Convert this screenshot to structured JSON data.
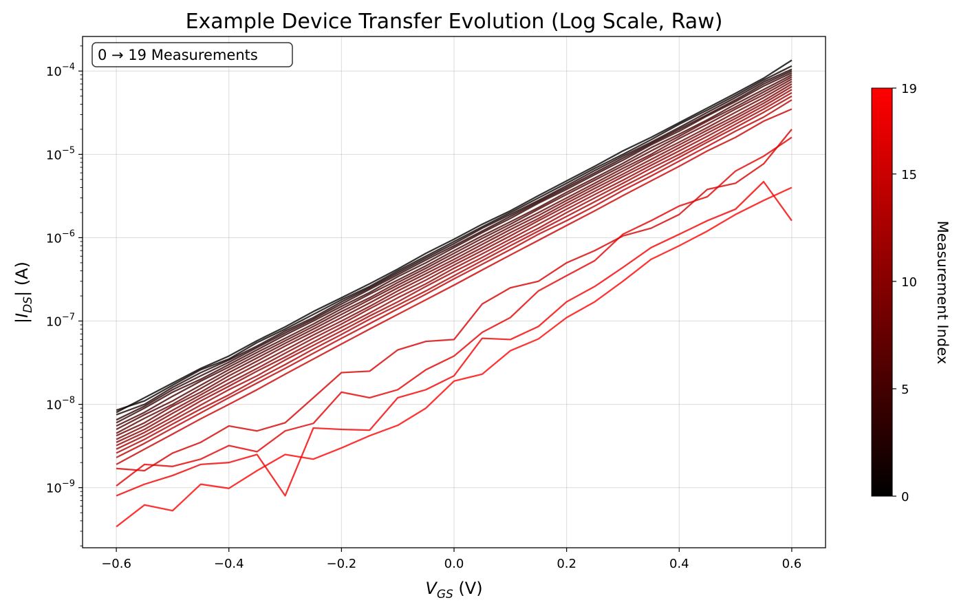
{
  "chart_data": {
    "type": "line",
    "title": "Example Device Transfer Evolution (Log Scale, Raw)",
    "xlabel": {
      "main": "V",
      "sub": "GS",
      "unit": " (V)"
    },
    "ylabel": {
      "main": "|I",
      "sub": "DS",
      "unit": "| (A)"
    },
    "xlim": [
      -0.66,
      0.66
    ],
    "ylim": [
      1.9e-10,
      0.00026
    ],
    "yscale": "log",
    "grid": true,
    "annotation": "0 → 19 Measurements",
    "x_ticks": [
      -0.6,
      -0.4,
      -0.2,
      0.0,
      0.2,
      0.4,
      0.6
    ],
    "x_tick_labels": [
      "−0.6",
      "−0.4",
      "−0.2",
      "0.0",
      "0.2",
      "0.4",
      "0.6"
    ],
    "y_ticks": [
      {
        "value": 1e-09,
        "base": "10",
        "exp": "−9"
      },
      {
        "value": 1e-08,
        "base": "10",
        "exp": "−8"
      },
      {
        "value": 1e-07,
        "base": "10",
        "exp": "−7"
      },
      {
        "value": 1e-06,
        "base": "10",
        "exp": "−6"
      },
      {
        "value": 1e-05,
        "base": "10",
        "exp": "−5"
      },
      {
        "value": 0.0001,
        "base": "10",
        "exp": "−4"
      }
    ],
    "colorbar": {
      "label": "Measurement Index",
      "range": [
        0,
        19
      ],
      "ticks": [
        0,
        5,
        10,
        15,
        19
      ],
      "tick_labels": [
        "0",
        "5",
        "10",
        "15",
        "19"
      ],
      "colors": [
        "#000000",
        "#ff0000"
      ]
    },
    "x": [
      -0.6,
      -0.55,
      -0.5,
      -0.45,
      -0.4,
      -0.35,
      -0.3,
      -0.25,
      -0.2,
      -0.15,
      -0.1,
      -0.05,
      0.0,
      0.05,
      0.1,
      0.15,
      0.2,
      0.25,
      0.3,
      0.35,
      0.4,
      0.45,
      0.5,
      0.55,
      0.6
    ],
    "series": [
      {
        "index": 0,
        "values": [
          8e-09,
          1.2e-08,
          1.8e-08,
          2.7e-08,
          3.8e-08,
          5.8e-08,
          8.5e-08,
          1.3e-07,
          1.9e-07,
          2.8e-07,
          4.2e-07,
          6.5e-07,
          9.6e-07,
          1.45e-06,
          2.1e-06,
          3.2e-06,
          4.8e-06,
          7.2e-06,
          1.1e-05,
          1.6e-05,
          2.4e-05,
          3.6e-05,
          5.4e-05,
          8.2e-05,
          0.000135
        ]
      },
      {
        "index": 1,
        "values": [
          8.5e-09,
          1.1e-08,
          1.7e-08,
          2.6e-08,
          3.5e-08,
          5.5e-08,
          8e-08,
          1.2e-07,
          1.8e-07,
          2.6e-07,
          4e-07,
          6e-07,
          9e-07,
          1.35e-06,
          2e-06,
          3e-06,
          4.5e-06,
          6.8e-06,
          1e-05,
          1.5e-05,
          2.3e-05,
          3.4e-05,
          5.1e-05,
          7.8e-05,
          0.000115
        ]
      },
      {
        "index": 2,
        "values": [
          7.5e-09,
          1e-08,
          1.6e-08,
          2.4e-08,
          3.4e-08,
          5e-08,
          7.6e-08,
          1.1e-07,
          1.7e-07,
          2.5e-07,
          3.8e-07,
          5.7e-07,
          8.5e-07,
          1.3e-06,
          1.9e-06,
          2.8e-06,
          4.2e-06,
          6.4e-06,
          9.5e-06,
          1.4e-05,
          2.1e-05,
          3.2e-05,
          4.8e-05,
          7.4e-05,
          0.000105
        ]
      },
      {
        "index": 3,
        "values": [
          6.5e-09,
          9.5e-09,
          1.5e-08,
          2.2e-08,
          3.2e-08,
          4.8e-08,
          7.2e-08,
          1.05e-07,
          1.6e-07,
          2.4e-07,
          3.6e-07,
          5.4e-07,
          8e-07,
          1.2e-06,
          1.8e-06,
          2.7e-06,
          4e-06,
          6e-06,
          9e-06,
          1.35e-05,
          2e-05,
          3e-05,
          4.5e-05,
          7e-05,
          0.0001
        ]
      },
      {
        "index": 4,
        "values": [
          6e-09,
          9e-09,
          1.4e-08,
          2e-08,
          3e-08,
          4.5e-08,
          6.8e-08,
          1e-07,
          1.5e-07,
          2.2e-07,
          3.4e-07,
          5e-07,
          7.6e-07,
          1.15e-06,
          1.7e-06,
          2.6e-06,
          3.8e-06,
          5.7e-06,
          8.5e-06,
          1.3e-05,
          1.9e-05,
          2.9e-05,
          4.3e-05,
          6.6e-05,
          9.5e-05
        ]
      },
      {
        "index": 5,
        "values": [
          5.5e-09,
          8e-09,
          1.25e-08,
          1.9e-08,
          2.8e-08,
          4.2e-08,
          6.2e-08,
          9.2e-08,
          1.4e-07,
          2.1e-07,
          3.1e-07,
          4.6e-07,
          7e-07,
          1.05e-06,
          1.55e-06,
          2.3e-06,
          3.5e-06,
          5.2e-06,
          7.8e-06,
          1.2e-05,
          1.75e-05,
          2.6e-05,
          4e-05,
          6e-05,
          9e-05
        ]
      },
      {
        "index": 6,
        "values": [
          5e-09,
          7.5e-09,
          1.1e-08,
          1.7e-08,
          2.6e-08,
          3.9e-08,
          5.8e-08,
          8.6e-08,
          1.3e-07,
          1.9e-07,
          2.9e-07,
          4.3e-07,
          6.5e-07,
          9.8e-07,
          1.45e-06,
          2.2e-06,
          3.3e-06,
          4.9e-06,
          7.3e-06,
          1.1e-05,
          1.65e-05,
          2.5e-05,
          3.7e-05,
          5.6e-05,
          8.5e-05
        ]
      },
      {
        "index": 7,
        "values": [
          4.5e-09,
          6.8e-09,
          1e-08,
          1.55e-08,
          2.4e-08,
          3.6e-08,
          5.4e-08,
          8e-08,
          1.2e-07,
          1.8e-07,
          2.7e-07,
          4e-07,
          6e-07,
          9e-07,
          1.35e-06,
          2e-06,
          3e-06,
          4.5e-06,
          6.8e-06,
          1e-05,
          1.55e-05,
          2.3e-05,
          3.5e-05,
          5.2e-05,
          8e-05
        ]
      },
      {
        "index": 8,
        "values": [
          4.2e-09,
          6e-09,
          9.5e-09,
          1.4e-08,
          2.2e-08,
          3.3e-08,
          5e-08,
          7.4e-08,
          1.1e-07,
          1.65e-07,
          2.5e-07,
          3.7e-07,
          5.5e-07,
          8.3e-07,
          1.25e-06,
          1.85e-06,
          2.8e-06,
          4.2e-06,
          6.3e-06,
          9.5e-06,
          1.4e-05,
          2.1e-05,
          3.2e-05,
          4.8e-05,
          7.5e-05
        ]
      },
      {
        "index": 9,
        "values": [
          3.8e-09,
          5.5e-09,
          8.5e-09,
          1.3e-08,
          2e-08,
          3e-08,
          4.5e-08,
          6.8e-08,
          1e-07,
          1.5e-07,
          2.3e-07,
          3.4e-07,
          5.1e-07,
          7.6e-07,
          1.15e-06,
          1.7e-06,
          2.6e-06,
          3.9e-06,
          5.8e-06,
          8.7e-06,
          1.3e-05,
          1.95e-05,
          2.9e-05,
          4.4e-05,
          7e-05
        ]
      },
      {
        "index": 10,
        "values": [
          3.5e-09,
          5e-09,
          7.8e-09,
          1.2e-08,
          1.8e-08,
          2.7e-08,
          4.1e-08,
          6.2e-08,
          9.2e-08,
          1.4e-07,
          2.1e-07,
          3.1e-07,
          4.7e-07,
          7e-07,
          1.05e-06,
          1.6e-06,
          2.4e-06,
          3.6e-06,
          5.4e-06,
          8e-06,
          1.2e-05,
          1.8e-05,
          2.7e-05,
          4.1e-05,
          6.5e-05
        ]
      },
      {
        "index": 11,
        "values": [
          3.2e-09,
          4.6e-09,
          7e-09,
          1.1e-08,
          1.65e-08,
          2.5e-08,
          3.7e-08,
          5.6e-08,
          8.4e-08,
          1.25e-07,
          1.9e-07,
          2.8e-07,
          4.3e-07,
          6.4e-07,
          9.6e-07,
          1.45e-06,
          2.2e-06,
          3.3e-06,
          4.9e-06,
          7.4e-06,
          1.1e-05,
          1.65e-05,
          2.5e-05,
          3.8e-05,
          6e-05
        ]
      },
      {
        "index": 12,
        "values": [
          2.9e-09,
          4.2e-09,
          6.4e-09,
          9.8e-09,
          1.5e-08,
          2.2e-08,
          3.4e-08,
          5.1e-08,
          7.6e-08,
          1.15e-07,
          1.7e-07,
          2.6e-07,
          3.9e-07,
          5.8e-07,
          8.8e-07,
          1.3e-06,
          2e-06,
          3e-06,
          4.5e-06,
          6.8e-06,
          1e-05,
          1.5e-05,
          2.3e-05,
          3.5e-05,
          5.5e-05
        ]
      },
      {
        "index": 13,
        "values": [
          2.6e-09,
          3.8e-09,
          5.8e-09,
          8.8e-09,
          1.3e-08,
          2e-08,
          3e-08,
          4.6e-08,
          6.9e-08,
          1.05e-07,
          1.55e-07,
          2.3e-07,
          3.5e-07,
          5.3e-07,
          8e-07,
          1.2e-06,
          1.8e-06,
          2.7e-06,
          4.1e-06,
          6.1e-06,
          9.2e-06,
          1.4e-05,
          2.1e-05,
          3.2e-05,
          5e-05
        ]
      },
      {
        "index": 14,
        "values": [
          2.3e-09,
          3.4e-09,
          5.2e-09,
          7.9e-09,
          1.2e-08,
          1.8e-08,
          2.7e-08,
          4.1e-08,
          6.2e-08,
          9.3e-08,
          1.4e-07,
          2.1e-07,
          3.2e-07,
          4.8e-07,
          7.2e-07,
          1.1e-06,
          1.6e-06,
          2.4e-06,
          3.7e-06,
          5.5e-06,
          8.3e-06,
          1.25e-05,
          1.9e-05,
          2.8e-05,
          4.5e-05
        ]
      },
      {
        "index": 15,
        "values": [
          1.9e-09,
          2.9e-09,
          4.4e-09,
          6.7e-09,
          1e-08,
          1.5e-08,
          2.3e-08,
          3.5e-08,
          5.3e-08,
          8e-08,
          1.2e-07,
          1.8e-07,
          2.7e-07,
          4.1e-07,
          6.2e-07,
          9.3e-07,
          1.4e-06,
          2.1e-06,
          3.2e-06,
          4.8e-06,
          7.2e-06,
          1.1e-05,
          1.6e-05,
          2.5e-05,
          3.5e-05
        ]
      },
      {
        "index": 16,
        "values": [
          1.7e-09,
          1.6e-09,
          2.6e-09,
          3.5e-09,
          5.5e-09,
          4.8e-09,
          6e-09,
          1.2e-08,
          2.4e-08,
          2.5e-08,
          4.5e-08,
          5.7e-08,
          6e-08,
          1.6e-07,
          2.5e-07,
          3e-07,
          5e-07,
          7e-07,
          1.05e-06,
          1.3e-06,
          1.9e-06,
          3.8e-06,
          4.5e-06,
          7.7e-06,
          2e-05
        ]
      },
      {
        "index": 17,
        "values": [
          1.05e-09,
          1.9e-09,
          1.8e-09,
          2.2e-09,
          3.2e-09,
          2.7e-09,
          4.8e-09,
          5.9e-09,
          1.4e-08,
          1.2e-08,
          1.5e-08,
          2.6e-08,
          3.8e-08,
          7.3e-08,
          1.1e-07,
          2.3e-07,
          3.5e-07,
          5.3e-07,
          1.1e-06,
          1.6e-06,
          2.4e-06,
          3.1e-06,
          6.3e-06,
          9.5e-06,
          1.6e-05
        ]
      },
      {
        "index": 18,
        "values": [
          8e-10,
          1.1e-09,
          1.4e-09,
          1.9e-09,
          2e-09,
          2.5e-09,
          8e-10,
          5.2e-09,
          5e-09,
          4.9e-09,
          1.2e-08,
          1.5e-08,
          2.2e-08,
          6.2e-08,
          6e-08,
          8.6e-08,
          1.7e-07,
          2.6e-07,
          4.4e-07,
          7.6e-07,
          1.1e-06,
          1.6e-06,
          2.2e-06,
          4.7e-06,
          1.6e-06
        ]
      },
      {
        "index": 19,
        "values": [
          3.4e-10,
          6.2e-10,
          5.3e-10,
          1.1e-09,
          9.8e-10,
          1.6e-09,
          2.5e-09,
          2.2e-09,
          3e-09,
          4.2e-09,
          5.6e-09,
          9e-09,
          1.9e-08,
          2.3e-08,
          4.4e-08,
          6.1e-08,
          1.1e-07,
          1.7e-07,
          3e-07,
          5.5e-07,
          8e-07,
          1.2e-06,
          1.9e-06,
          2.8e-06,
          4e-06
        ]
      }
    ]
  }
}
